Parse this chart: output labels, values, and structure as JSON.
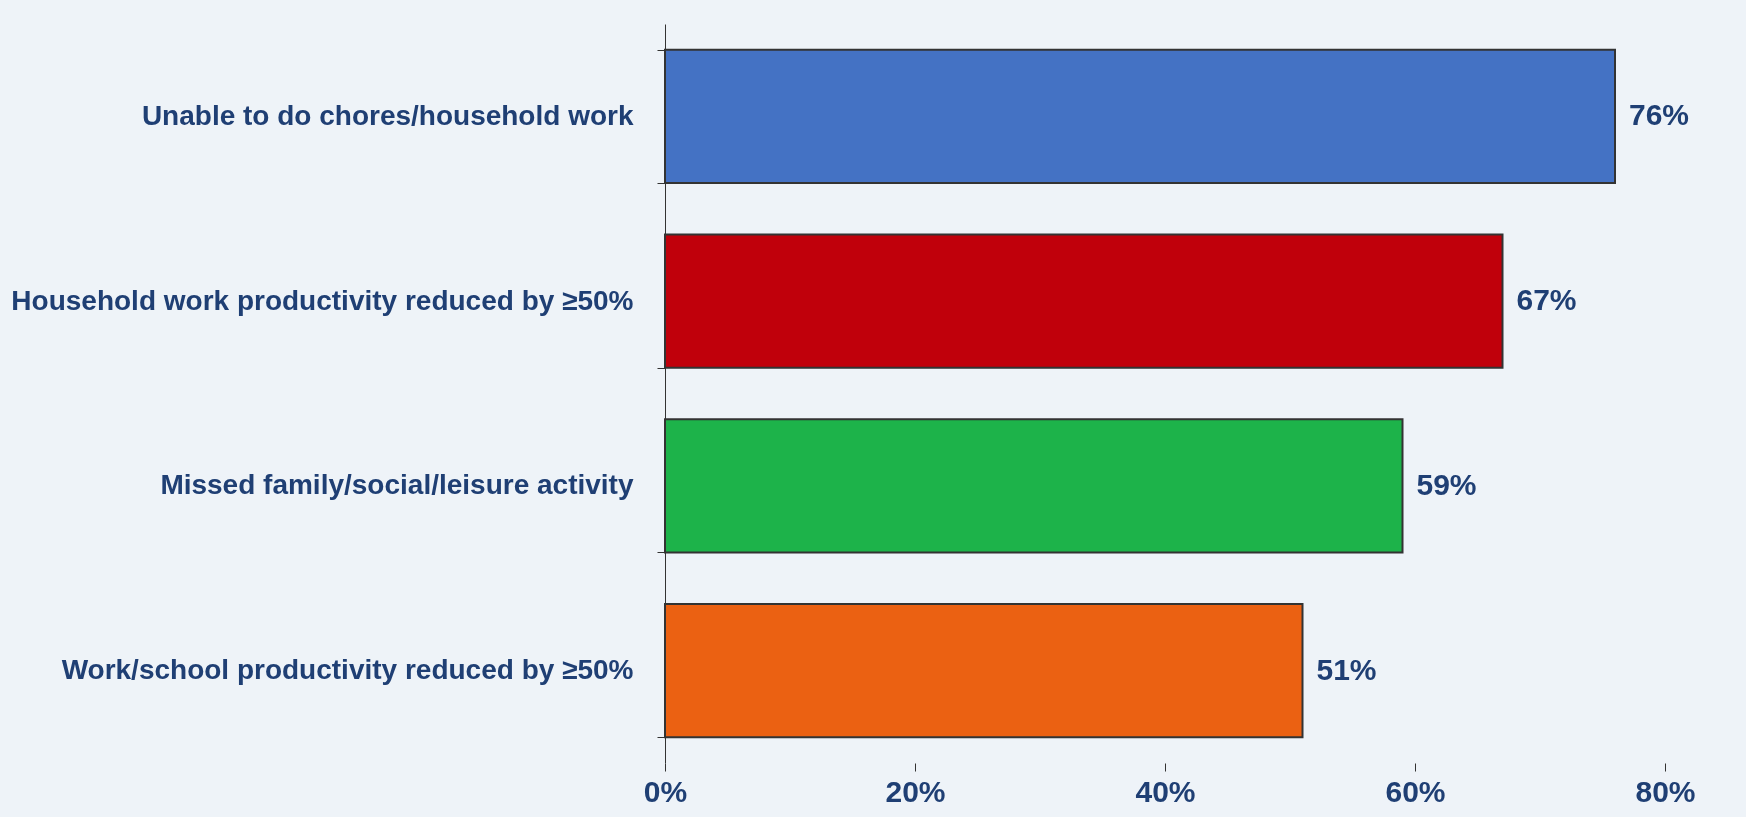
{
  "chart_data": {
    "type": "bar",
    "orientation": "horizontal",
    "categories": [
      "Unable to do chores/household work",
      "Household work productivity reduced by ≥50%",
      "Missed family/social/leisure activity",
      "Work/school productivity reduced by ≥50%"
    ],
    "values": [
      76,
      67,
      59,
      51
    ],
    "colors": [
      "#4472c4",
      "#c0000b",
      "#1db34a",
      "#eb6112"
    ],
    "value_labels": [
      "76%",
      "67%",
      "59%",
      "51%"
    ],
    "xlim": [
      0,
      80
    ],
    "xticks": [
      {
        "value": 0,
        "label": "0%"
      },
      {
        "value": 20,
        "label": "20%"
      },
      {
        "value": 40,
        "label": "40%"
      },
      {
        "value": 60,
        "label": "60%"
      },
      {
        "value": 80,
        "label": "80%"
      }
    ],
    "grid": false
  }
}
